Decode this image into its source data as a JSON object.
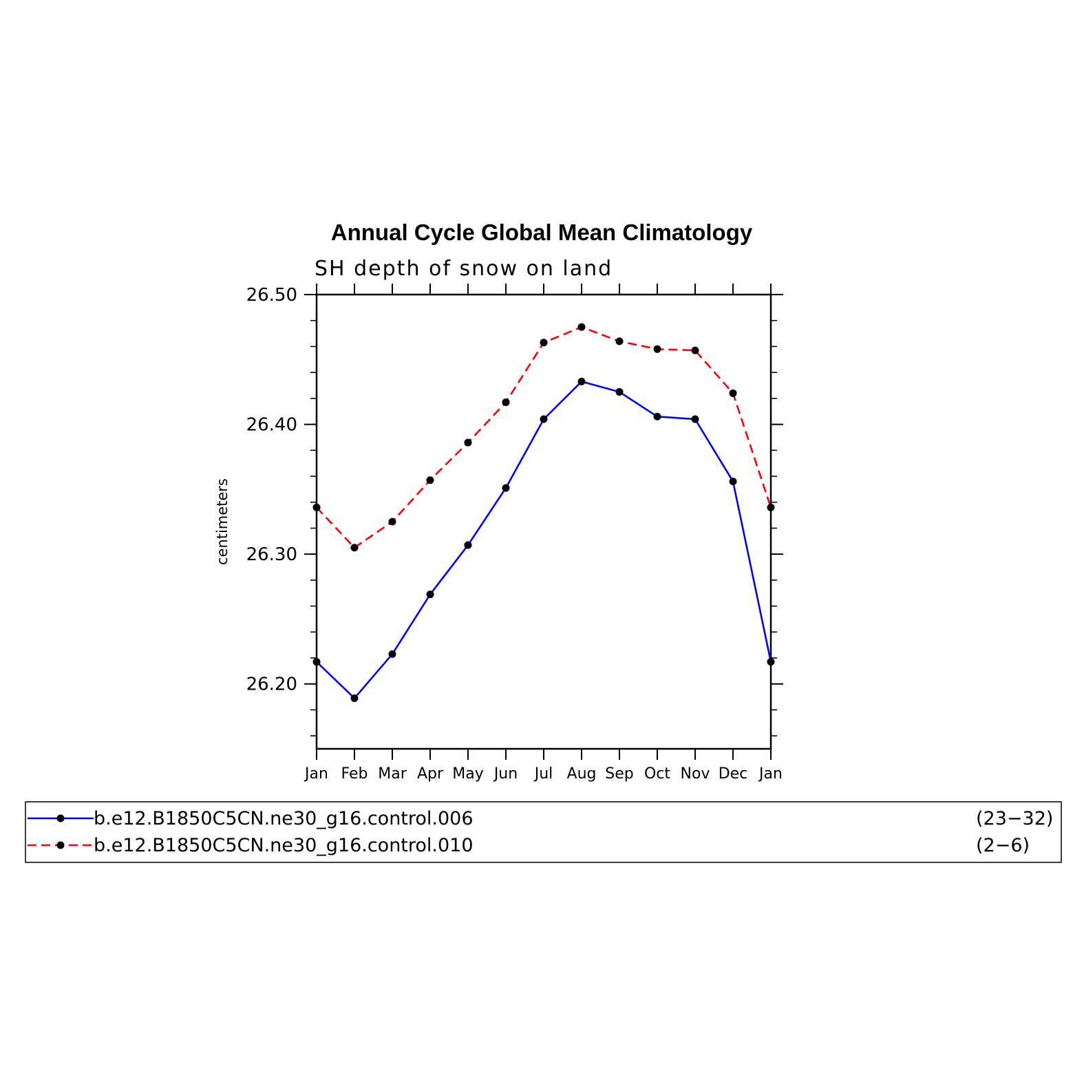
{
  "chart_data": {
    "type": "line",
    "title": "Annual Cycle Global Mean Climatology",
    "subtitle": "SH depth of snow on land",
    "ylabel": "centimeters",
    "xlabel": "",
    "categories": [
      "Jan",
      "Feb",
      "Mar",
      "Apr",
      "May",
      "Jun",
      "Jul",
      "Aug",
      "Sep",
      "Oct",
      "Nov",
      "Dec",
      "Jan"
    ],
    "ylim": [
      26.15,
      26.5
    ],
    "yticks": [
      26.2,
      26.3,
      26.4,
      26.5
    ],
    "ytick_labels": [
      "26.20",
      "26.30",
      "26.40",
      "26.50"
    ],
    "series": [
      {
        "name": "b.e12.B1850C5CN.ne30_g16.control.006",
        "years": "(23−32)",
        "color": "#0000ff",
        "dash": "solid",
        "values": [
          26.217,
          26.189,
          26.223,
          26.269,
          26.307,
          26.351,
          26.404,
          26.433,
          26.425,
          26.406,
          26.404,
          26.356,
          26.217
        ]
      },
      {
        "name": "b.e12.B1850C5CN.ne30_g16.control.010",
        "years": "(2−6)",
        "color": "#ff0000",
        "dash": "dashed",
        "values": [
          26.336,
          26.305,
          26.325,
          26.357,
          26.386,
          26.417,
          26.463,
          26.475,
          26.464,
          26.458,
          26.457,
          26.424,
          26.336
        ]
      }
    ],
    "grid": false,
    "legend_position": "bottom"
  }
}
